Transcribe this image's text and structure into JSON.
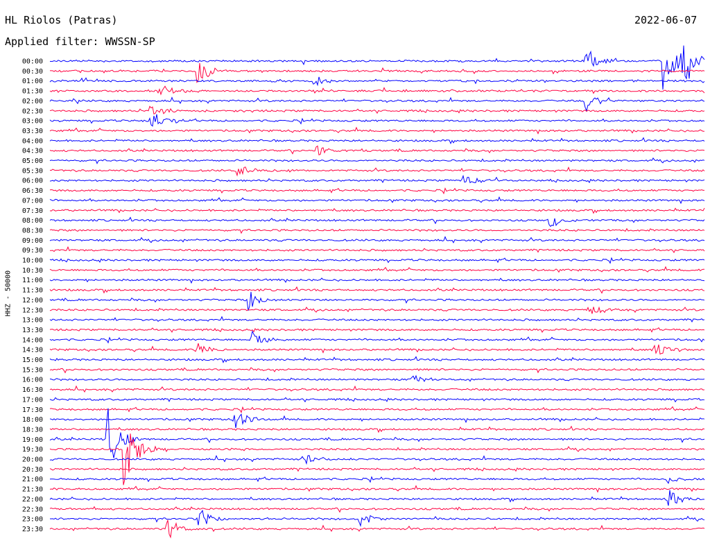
{
  "header": {
    "station": "HL Riolos (Patras)",
    "date": "2022-06-07",
    "filter": "Applied filter: WWSSN-SP"
  },
  "chart_data": {
    "type": "line",
    "title": "HL Riolos (Patras)",
    "ylabel": "HHZ - 50000",
    "colors": [
      "#0000ff",
      "#ff0040"
    ],
    "rows": [
      "00:00",
      "00:30",
      "01:00",
      "01:30",
      "02:00",
      "02:30",
      "03:00",
      "03:30",
      "04:00",
      "04:30",
      "05:00",
      "05:30",
      "06:00",
      "06:30",
      "07:00",
      "07:30",
      "08:00",
      "08:30",
      "09:00",
      "09:30",
      "10:00",
      "10:30",
      "11:00",
      "11:30",
      "12:00",
      "12:30",
      "13:00",
      "13:30",
      "14:00",
      "14:30",
      "15:00",
      "15:30",
      "16:00",
      "16:30",
      "17:00",
      "17:30",
      "18:00",
      "18:30",
      "19:00",
      "19:30",
      "20:00",
      "20:30",
      "21:00",
      "21:30",
      "22:00",
      "22:30",
      "23:00",
      "23:30"
    ],
    "events": [
      {
        "row": 0,
        "x": 0.82,
        "amp": 2.5
      },
      {
        "row": 0,
        "x": 0.94,
        "amp": 6
      },
      {
        "row": 0,
        "x": 0.97,
        "amp": 3
      },
      {
        "row": 1,
        "x": 0.225,
        "amp": 2.5
      },
      {
        "row": 2,
        "x": 0.405,
        "amp": 1
      },
      {
        "row": 3,
        "x": 0.17,
        "amp": 1
      },
      {
        "row": 4,
        "x": 0.82,
        "amp": 1.5
      },
      {
        "row": 5,
        "x": 0.155,
        "amp": 1
      },
      {
        "row": 6,
        "x": 0.155,
        "amp": 1.5
      },
      {
        "row": 9,
        "x": 0.41,
        "amp": 0.8
      },
      {
        "row": 11,
        "x": 0.29,
        "amp": 1
      },
      {
        "row": 12,
        "x": 0.635,
        "amp": 0.8
      },
      {
        "row": 16,
        "x": 0.765,
        "amp": 1
      },
      {
        "row": 24,
        "x": 0.305,
        "amp": 1.5
      },
      {
        "row": 25,
        "x": 0.825,
        "amp": 0.8
      },
      {
        "row": 28,
        "x": 0.31,
        "amp": 1.5
      },
      {
        "row": 29,
        "x": 0.225,
        "amp": 1.2
      },
      {
        "row": 29,
        "x": 0.925,
        "amp": 1.2
      },
      {
        "row": 32,
        "x": 0.555,
        "amp": 0.8
      },
      {
        "row": 36,
        "x": 0.285,
        "amp": 1.5
      },
      {
        "row": 38,
        "x": 0.09,
        "amp": 6
      },
      {
        "row": 39,
        "x": 0.115,
        "amp": 6
      },
      {
        "row": 40,
        "x": 0.395,
        "amp": 0.8
      },
      {
        "row": 42,
        "x": 0.945,
        "amp": 0.6
      },
      {
        "row": 44,
        "x": 0.945,
        "amp": 1.5
      },
      {
        "row": 46,
        "x": 0.23,
        "amp": 1.5
      },
      {
        "row": 46,
        "x": 0.475,
        "amp": 1
      },
      {
        "row": 47,
        "x": 0.18,
        "amp": 1.5
      }
    ]
  }
}
